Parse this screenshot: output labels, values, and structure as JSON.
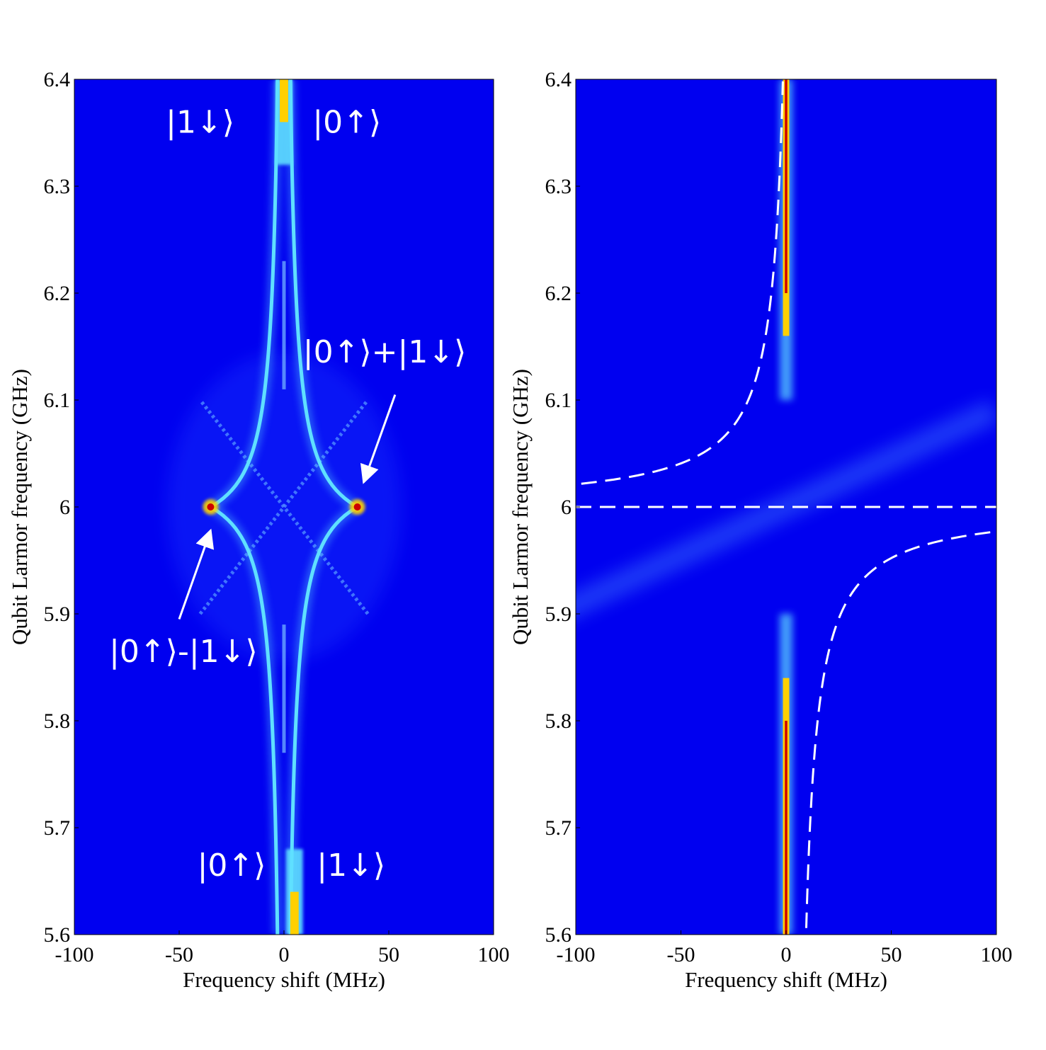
{
  "colors": {
    "background": "#0000f0",
    "glow": "#5fe0ff",
    "hot": "#ffd000",
    "core": "#cc0000",
    "annotation": "#ffffff"
  },
  "chart_data": [
    {
      "type": "heatmap",
      "panel": "left",
      "xlabel": "Frequency shift (MHz)",
      "ylabel": "Qubit Larmor frequency (GHz)",
      "xlim": [
        -100,
        100
      ],
      "ylim": [
        5.6,
        6.4
      ],
      "xticks": [
        -100,
        -50,
        0,
        50,
        100
      ],
      "xtick_labels": [
        "-100",
        "-50",
        "0",
        "50",
        "100"
      ],
      "yticks": [
        5.6,
        5.7,
        5.8,
        5.9,
        6.0,
        6.1,
        6.2,
        6.3,
        6.4
      ],
      "ytick_labels": [
        "5.6",
        "5.7",
        "5.8",
        "5.9",
        "6",
        "6.1",
        "6.2",
        "6.3",
        "6.4"
      ],
      "features": {
        "hyperbola_branches_minimum_splitting_MHz": 35,
        "diagonal_lines_slope_MHz_per_GHz": 400,
        "crossing_points": [
          [
            -35,
            6.0
          ],
          [
            35,
            6.0
          ]
        ],
        "central_line_MHz": 0
      },
      "annotations": [
        {
          "text": "|1↓⟩",
          "x": -40,
          "y": 6.35
        },
        {
          "text": "|0↑⟩",
          "x": 30,
          "y": 6.35
        },
        {
          "text": "|0↑⟩+|1↓⟩",
          "x": 48,
          "y": 6.135,
          "arrow_to": [
            38,
            6.023
          ]
        },
        {
          "text": "|0↑⟩-|1↓⟩",
          "x": -48,
          "y": 5.855,
          "arrow_from": [
            -50,
            5.895
          ],
          "arrow_to": [
            -35,
            5.978
          ]
        },
        {
          "text": "|0↑⟩",
          "x": -25,
          "y": 5.655
        },
        {
          "text": "|1↓⟩",
          "x": 32,
          "y": 5.655
        }
      ]
    },
    {
      "type": "heatmap",
      "panel": "right",
      "xlabel": "Frequency shift (MHz)",
      "ylabel": "Qubit Larmor frequency (GHz)",
      "xlim": [
        -100,
        100
      ],
      "ylim": [
        5.6,
        6.4
      ],
      "xticks": [
        -100,
        -50,
        0,
        50,
        100
      ],
      "xtick_labels": [
        "-100",
        "-50",
        "0",
        "50",
        "100"
      ],
      "yticks": [
        5.6,
        5.7,
        5.8,
        5.9,
        6.0,
        6.1,
        6.2,
        6.3,
        6.4
      ],
      "ytick_labels": [
        "5.6",
        "5.7",
        "5.8",
        "5.9",
        "6",
        "6.1",
        "6.2",
        "6.3",
        "6.4"
      ],
      "features": {
        "central_line_MHz": 0,
        "dashed_horizontal_GHz": 6.0,
        "dashed_curve": "x = 4 - 2.2/(f - 6.0)",
        "diagonal_slope_MHz_per_GHz": 1100
      }
    }
  ]
}
